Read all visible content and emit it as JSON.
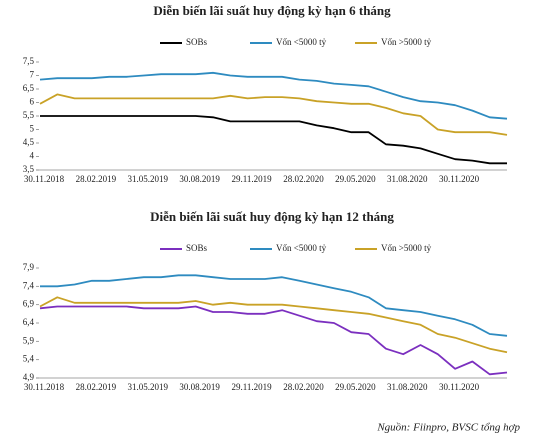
{
  "chart_data": [
    {
      "type": "line",
      "title": "Diễn biến lãi suất huy động kỳ hạn 6 tháng",
      "categories": [
        "30.11.2018",
        null,
        null,
        "28.02.2019",
        null,
        null,
        "31.05.2019",
        null,
        null,
        "30.08.2019",
        null,
        null,
        "29.11.2019",
        null,
        null,
        "28.02.2020",
        null,
        null,
        "29.05.2020",
        null,
        null,
        "31.08.2020",
        null,
        null,
        "30.11.2020",
        null,
        null,
        null
      ],
      "series": [
        {
          "name": "SOBs",
          "color": "#000000",
          "values": [
            5.5,
            5.5,
            5.5,
            5.5,
            5.5,
            5.5,
            5.5,
            5.5,
            5.5,
            5.5,
            5.45,
            5.3,
            5.3,
            5.3,
            5.3,
            5.3,
            5.15,
            5.05,
            4.9,
            4.9,
            4.45,
            4.4,
            4.3,
            4.1,
            3.9,
            3.85,
            3.75,
            3.75
          ]
        },
        {
          "name": "Vốn <5000 tỷ",
          "color": "#2e8bc0",
          "values": [
            6.85,
            6.9,
            6.9,
            6.9,
            6.95,
            6.95,
            7.0,
            7.05,
            7.05,
            7.05,
            7.1,
            7.0,
            6.95,
            6.95,
            6.95,
            6.85,
            6.8,
            6.7,
            6.65,
            6.6,
            6.4,
            6.2,
            6.05,
            6.0,
            5.9,
            5.7,
            5.45,
            5.4
          ]
        },
        {
          "name": "Vốn >5000 tỷ",
          "color": "#c9a227",
          "values": [
            5.95,
            6.3,
            6.15,
            6.15,
            6.15,
            6.15,
            6.15,
            6.15,
            6.15,
            6.15,
            6.15,
            6.25,
            6.15,
            6.2,
            6.2,
            6.15,
            6.05,
            6.0,
            5.95,
            5.95,
            5.8,
            5.6,
            5.5,
            5.0,
            4.9,
            4.9,
            4.9,
            4.8
          ]
        }
      ],
      "ylim": [
        3.5,
        7.5
      ],
      "yticks": [
        {
          "value": 3.5,
          "label": "3,5"
        },
        4,
        {
          "value": 4.5,
          "label": "4,5"
        },
        5,
        {
          "value": 5.5,
          "label": "5,5"
        },
        6,
        {
          "value": 6.5,
          "label": "6,5"
        },
        7,
        {
          "value": 7.5,
          "label": "7,5"
        }
      ],
      "grid": false
    },
    {
      "type": "line",
      "title": "Diễn biến lãi suất huy động kỳ hạn 12 tháng",
      "categories": [
        "30.11.2018",
        null,
        null,
        "28.02.2019",
        null,
        null,
        "31.05.2019",
        null,
        null,
        "30.08.2019",
        null,
        null,
        "29.11.2019",
        null,
        null,
        "28.02.2020",
        null,
        null,
        "29.05.2020",
        null,
        null,
        "31.08.2020",
        null,
        null,
        "30.11.2020",
        null,
        null,
        null
      ],
      "series": [
        {
          "name": "SOBs",
          "color": "#7b2fbf",
          "values": [
            6.8,
            6.85,
            6.85,
            6.85,
            6.85,
            6.85,
            6.8,
            6.8,
            6.8,
            6.85,
            6.7,
            6.7,
            6.65,
            6.65,
            6.75,
            6.6,
            6.45,
            6.4,
            6.15,
            6.1,
            5.7,
            5.55,
            5.8,
            5.55,
            5.15,
            5.35,
            5.0,
            5.05
          ]
        },
        {
          "name": "Vốn <5000 tỷ",
          "color": "#2e8bc0",
          "values": [
            7.4,
            7.4,
            7.45,
            7.55,
            7.55,
            7.6,
            7.65,
            7.65,
            7.7,
            7.7,
            7.65,
            7.6,
            7.6,
            7.6,
            7.65,
            7.55,
            7.45,
            7.35,
            7.25,
            7.1,
            6.8,
            6.75,
            6.7,
            6.6,
            6.5,
            6.35,
            6.1,
            6.05
          ]
        },
        {
          "name": "Vốn >5000 tỷ",
          "color": "#c9a227",
          "values": [
            6.85,
            7.1,
            6.95,
            6.95,
            6.95,
            6.95,
            6.95,
            6.95,
            6.95,
            7.0,
            6.9,
            6.95,
            6.9,
            6.9,
            6.9,
            6.85,
            6.8,
            6.75,
            6.7,
            6.65,
            6.55,
            6.45,
            6.35,
            6.1,
            6.0,
            5.85,
            5.7,
            5.6
          ]
        }
      ],
      "ylim": [
        4.9,
        7.9
      ],
      "yticks": [
        {
          "value": 4.9,
          "label": "4,9"
        },
        {
          "value": 5.4,
          "label": "5,4"
        },
        {
          "value": 5.9,
          "label": "5,9"
        },
        {
          "value": 6.4,
          "label": "6,4"
        },
        {
          "value": 6.9,
          "label": "6,9"
        },
        {
          "value": 7.4,
          "label": "7,4"
        },
        {
          "value": 7.9,
          "label": "7,9"
        }
      ],
      "grid": false
    }
  ],
  "source": "Nguồn: Fiinpro, BVSC tổng hợp"
}
